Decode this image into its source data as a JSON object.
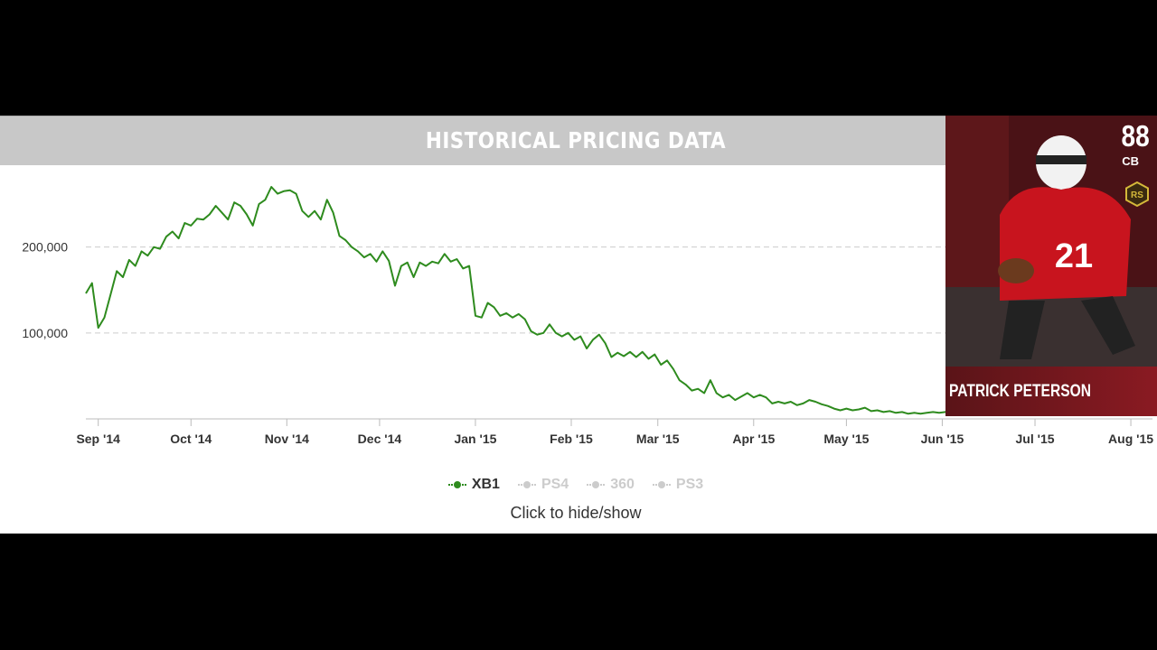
{
  "title": "HISTORICAL PRICING DATA",
  "hint": "Click to hide/show",
  "legend": [
    {
      "label": "XB1",
      "active": true
    },
    {
      "label": "PS4",
      "active": false
    },
    {
      "label": "360",
      "active": false
    },
    {
      "label": "PS3",
      "active": false
    }
  ],
  "player": {
    "rating": "88",
    "position": "CB",
    "badge": "RS",
    "name": "PATRICK PETERSON"
  },
  "colors": {
    "series": "#2e8b1e",
    "grid": "#cccccc",
    "header": "#c8c8c8"
  },
  "chart_data": {
    "type": "line",
    "title": "HISTORICAL PRICING DATA",
    "xlabel": "",
    "ylabel": "",
    "ylim": [
      0,
      290000
    ],
    "xlim": [
      "2014-08-28",
      "2015-08-08"
    ],
    "grid": true,
    "legend_position": "bottom",
    "y_ticks": [
      {
        "value": 100000,
        "label": "100,000"
      },
      {
        "value": 200000,
        "label": "200,000"
      }
    ],
    "x_ticks": [
      {
        "date": "2014-09-01",
        "label": "Sep '14"
      },
      {
        "date": "2014-10-01",
        "label": "Oct '14"
      },
      {
        "date": "2014-11-01",
        "label": "Nov '14"
      },
      {
        "date": "2014-12-01",
        "label": "Dec '14"
      },
      {
        "date": "2015-01-01",
        "label": "Jan '15"
      },
      {
        "date": "2015-02-01",
        "label": "Feb '15"
      },
      {
        "date": "2015-03-01",
        "label": "Mar '15"
      },
      {
        "date": "2015-04-01",
        "label": "Apr '15"
      },
      {
        "date": "2015-05-01",
        "label": "May '15"
      },
      {
        "date": "2015-06-01",
        "label": "Jun '15"
      },
      {
        "date": "2015-07-01",
        "label": "Jul '15"
      },
      {
        "date": "2015-08-01",
        "label": "Aug '15"
      }
    ],
    "series": [
      {
        "name": "XB1",
        "points": [
          [
            "2014-08-28",
            146000
          ],
          [
            "2014-08-30",
            158000
          ],
          [
            "2014-09-01",
            106000
          ],
          [
            "2014-09-03",
            118000
          ],
          [
            "2014-09-05",
            145000
          ],
          [
            "2014-09-07",
            172000
          ],
          [
            "2014-09-09",
            165000
          ],
          [
            "2014-09-11",
            185000
          ],
          [
            "2014-09-13",
            178000
          ],
          [
            "2014-09-15",
            195000
          ],
          [
            "2014-09-17",
            190000
          ],
          [
            "2014-09-19",
            200000
          ],
          [
            "2014-09-21",
            198000
          ],
          [
            "2014-09-23",
            212000
          ],
          [
            "2014-09-25",
            218000
          ],
          [
            "2014-09-27",
            210000
          ],
          [
            "2014-09-29",
            228000
          ],
          [
            "2014-10-01",
            225000
          ],
          [
            "2014-10-03",
            233000
          ],
          [
            "2014-10-05",
            232000
          ],
          [
            "2014-10-07",
            238000
          ],
          [
            "2014-10-09",
            248000
          ],
          [
            "2014-10-11",
            240000
          ],
          [
            "2014-10-13",
            232000
          ],
          [
            "2014-10-15",
            252000
          ],
          [
            "2014-10-17",
            248000
          ],
          [
            "2014-10-19",
            238000
          ],
          [
            "2014-10-21",
            225000
          ],
          [
            "2014-10-23",
            250000
          ],
          [
            "2014-10-25",
            255000
          ],
          [
            "2014-10-27",
            270000
          ],
          [
            "2014-10-29",
            262000
          ],
          [
            "2014-10-31",
            265000
          ],
          [
            "2014-11-02",
            266000
          ],
          [
            "2014-11-04",
            262000
          ],
          [
            "2014-11-06",
            242000
          ],
          [
            "2014-11-08",
            235000
          ],
          [
            "2014-11-10",
            242000
          ],
          [
            "2014-11-12",
            232000
          ],
          [
            "2014-11-14",
            255000
          ],
          [
            "2014-11-16",
            240000
          ],
          [
            "2014-11-18",
            213000
          ],
          [
            "2014-11-20",
            208000
          ],
          [
            "2014-11-22",
            200000
          ],
          [
            "2014-11-24",
            195000
          ],
          [
            "2014-11-26",
            188000
          ],
          [
            "2014-11-28",
            192000
          ],
          [
            "2014-11-30",
            183000
          ],
          [
            "2014-12-02",
            195000
          ],
          [
            "2014-12-04",
            184000
          ],
          [
            "2014-12-06",
            155000
          ],
          [
            "2014-12-08",
            178000
          ],
          [
            "2014-12-10",
            182000
          ],
          [
            "2014-12-12",
            165000
          ],
          [
            "2014-12-14",
            182000
          ],
          [
            "2014-12-16",
            178000
          ],
          [
            "2014-12-18",
            183000
          ],
          [
            "2014-12-20",
            181000
          ],
          [
            "2014-12-22",
            192000
          ],
          [
            "2014-12-24",
            183000
          ],
          [
            "2014-12-26",
            186000
          ],
          [
            "2014-12-28",
            175000
          ],
          [
            "2014-12-30",
            178000
          ],
          [
            "2015-01-01",
            120000
          ],
          [
            "2015-01-03",
            118000
          ],
          [
            "2015-01-05",
            135000
          ],
          [
            "2015-01-07",
            130000
          ],
          [
            "2015-01-09",
            120000
          ],
          [
            "2015-01-11",
            123000
          ],
          [
            "2015-01-13",
            118000
          ],
          [
            "2015-01-15",
            122000
          ],
          [
            "2015-01-17",
            116000
          ],
          [
            "2015-01-19",
            102000
          ],
          [
            "2015-01-21",
            98000
          ],
          [
            "2015-01-23",
            100000
          ],
          [
            "2015-01-25",
            110000
          ],
          [
            "2015-01-27",
            100000
          ],
          [
            "2015-01-29",
            96000
          ],
          [
            "2015-01-31",
            100000
          ],
          [
            "2015-02-02",
            92000
          ],
          [
            "2015-02-04",
            96000
          ],
          [
            "2015-02-06",
            82000
          ],
          [
            "2015-02-08",
            92000
          ],
          [
            "2015-02-10",
            98000
          ],
          [
            "2015-02-12",
            88000
          ],
          [
            "2015-02-14",
            72000
          ],
          [
            "2015-02-16",
            77000
          ],
          [
            "2015-02-18",
            73000
          ],
          [
            "2015-02-20",
            78000
          ],
          [
            "2015-02-22",
            72000
          ],
          [
            "2015-02-24",
            78000
          ],
          [
            "2015-02-26",
            70000
          ],
          [
            "2015-02-28",
            75000
          ],
          [
            "2015-03-02",
            63000
          ],
          [
            "2015-03-04",
            68000
          ],
          [
            "2015-03-06",
            58000
          ],
          [
            "2015-03-08",
            45000
          ],
          [
            "2015-03-10",
            40000
          ],
          [
            "2015-03-12",
            33000
          ],
          [
            "2015-03-14",
            35000
          ],
          [
            "2015-03-16",
            30000
          ],
          [
            "2015-03-18",
            45000
          ],
          [
            "2015-03-20",
            30000
          ],
          [
            "2015-03-22",
            25000
          ],
          [
            "2015-03-24",
            28000
          ],
          [
            "2015-03-26",
            22000
          ],
          [
            "2015-03-28",
            26000
          ],
          [
            "2015-03-30",
            30000
          ],
          [
            "2015-04-01",
            25000
          ],
          [
            "2015-04-03",
            28000
          ],
          [
            "2015-04-05",
            25000
          ],
          [
            "2015-04-07",
            18000
          ],
          [
            "2015-04-09",
            20000
          ],
          [
            "2015-04-11",
            18000
          ],
          [
            "2015-04-13",
            20000
          ],
          [
            "2015-04-15",
            16000
          ],
          [
            "2015-04-17",
            18000
          ],
          [
            "2015-04-19",
            22000
          ],
          [
            "2015-04-21",
            20000
          ],
          [
            "2015-04-23",
            17000
          ],
          [
            "2015-04-25",
            15000
          ],
          [
            "2015-04-27",
            12000
          ],
          [
            "2015-04-29",
            10000
          ],
          [
            "2015-05-01",
            12000
          ],
          [
            "2015-05-03",
            10000
          ],
          [
            "2015-05-05",
            11000
          ],
          [
            "2015-05-07",
            13000
          ],
          [
            "2015-05-09",
            9000
          ],
          [
            "2015-05-11",
            10000
          ],
          [
            "2015-05-13",
            8000
          ],
          [
            "2015-05-15",
            9000
          ],
          [
            "2015-05-17",
            7000
          ],
          [
            "2015-05-19",
            8000
          ],
          [
            "2015-05-21",
            6000
          ],
          [
            "2015-05-23",
            7000
          ],
          [
            "2015-05-25",
            6000
          ],
          [
            "2015-05-27",
            7000
          ],
          [
            "2015-05-29",
            8000
          ],
          [
            "2015-05-31",
            7000
          ],
          [
            "2015-06-02",
            8000
          ],
          [
            "2015-06-04",
            9000
          ],
          [
            "2015-06-06",
            7000
          ],
          [
            "2015-06-08",
            8000
          ],
          [
            "2015-06-10",
            9000
          ],
          [
            "2015-06-12",
            8000
          ]
        ]
      }
    ]
  }
}
